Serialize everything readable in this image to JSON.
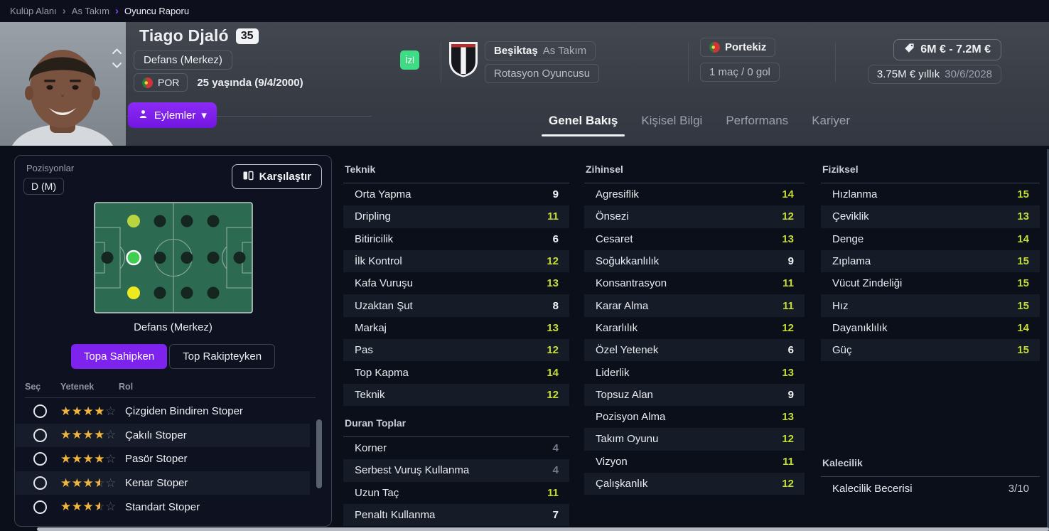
{
  "breadcrumb": {
    "items": [
      "Kulüp Alanı",
      "As Takım",
      "Oyuncu Raporu"
    ]
  },
  "header": {
    "player_name": "Tiago Djaló",
    "squad_number": "35",
    "position_label": "Defans (Merkez)",
    "nationality_code": "POR",
    "age_text": "25 yaşında (9/4/2000)",
    "watch_button": "İzl",
    "actions_button": "Eylemler",
    "club": {
      "name": "Beşiktaş",
      "team": "As Takım",
      "squad_status": "Rotasyon Oyuncusu"
    },
    "national_team": {
      "country": "Portekiz",
      "caps_goals": "1 maç / 0 gol"
    },
    "value": {
      "range": "6M € - 7.2M €",
      "wage": "3.75M € yıllık",
      "contract_end": "30/6/2028"
    },
    "tabs": [
      {
        "label": "Genel Bakış",
        "active": true
      },
      {
        "label": "Kişisel Bilgi",
        "active": false
      },
      {
        "label": "Performans",
        "active": false
      },
      {
        "label": "Kariyer",
        "active": false
      }
    ]
  },
  "positions_panel": {
    "title": "Pozisyonlar",
    "position_badge": "D (M)",
    "compare_button": "Karşılaştır",
    "pitch_caption": "Defans (Merkez)",
    "toggle": {
      "active": "Topa Sahipken",
      "inactive": "Top Rakipteyken"
    },
    "table_headers": [
      "Seç",
      "Yetenek",
      "Rol"
    ],
    "pitch": {
      "highlights": {
        "def-top": {
          "color": "#b8d43e"
        },
        "def-centre": {
          "color": "#3ecf52",
          "selected": true
        },
        "def-bottom": {
          "color": "#ece920"
        }
      }
    },
    "roles": [
      {
        "name": "Çizgiden Bindiren Stoper",
        "stars": 4
      },
      {
        "name": "Çakılı Stoper",
        "stars": 4
      },
      {
        "name": "Pasör Stoper",
        "stars": 4
      },
      {
        "name": "Kenar Stoper",
        "stars": 3.5
      },
      {
        "name": "Standart Stoper",
        "stars": 3.5
      }
    ]
  },
  "attributes": {
    "groups": [
      {
        "id": "teknik",
        "title": "Teknik",
        "col": 1,
        "rows": [
          [
            "Orta Yapma",
            9
          ],
          [
            "Dripling",
            11
          ],
          [
            "Bitiricilik",
            6
          ],
          [
            "İlk Kontrol",
            12
          ],
          [
            "Kafa Vuruşu",
            13
          ],
          [
            "Uzaktan Şut",
            8
          ],
          [
            "Markaj",
            13
          ],
          [
            "Pas",
            12
          ],
          [
            "Top Kapma",
            14
          ],
          [
            "Teknik",
            12
          ]
        ]
      },
      {
        "id": "duran-toplar",
        "title": "Duran Toplar",
        "col": 1,
        "rows": [
          [
            "Korner",
            4
          ],
          [
            "Serbest Vuruş Kullanma",
            4
          ],
          [
            "Uzun Taç",
            11
          ],
          [
            "Penaltı Kullanma",
            7
          ]
        ]
      },
      {
        "id": "zihinsel",
        "title": "Zihinsel",
        "col": 2,
        "rows": [
          [
            "Agresiflik",
            14
          ],
          [
            "Önsezi",
            12
          ],
          [
            "Cesaret",
            13
          ],
          [
            "Soğukkanlılık",
            9
          ],
          [
            "Konsantrasyon",
            11
          ],
          [
            "Karar Alma",
            11
          ],
          [
            "Kararlılık",
            12
          ],
          [
            "Özel Yetenek",
            6
          ],
          [
            "Liderlik",
            13
          ],
          [
            "Topsuz Alan",
            9
          ],
          [
            "Pozisyon Alma",
            13
          ],
          [
            "Takım Oyunu",
            12
          ],
          [
            "Vizyon",
            11
          ],
          [
            "Çalışkanlık",
            12
          ]
        ]
      },
      {
        "id": "fiziksel",
        "title": "Fiziksel",
        "col": 3,
        "rows": [
          [
            "Hızlanma",
            15
          ],
          [
            "Çeviklik",
            13
          ],
          [
            "Denge",
            14
          ],
          [
            "Zıplama",
            15
          ],
          [
            "Vücut Zindeliği",
            15
          ],
          [
            "Hız",
            15
          ],
          [
            "Dayanıklılık",
            14
          ],
          [
            "Güç",
            15
          ]
        ]
      },
      {
        "id": "kalecilik",
        "title": "Kalecilik",
        "col": 3,
        "rows": [
          [
            "Kalecilik Becerisi",
            "3/10"
          ]
        ]
      }
    ]
  },
  "icons": {
    "breadcrumb_separator": "›",
    "dropdown_chevron": "▾"
  },
  "colors": {
    "accent": "#7e22ee",
    "watch_green": "#3edc85",
    "attribute_high": "#c6de33",
    "star_gold": "#f0b53b",
    "pitch_green": "#2c6a51"
  }
}
